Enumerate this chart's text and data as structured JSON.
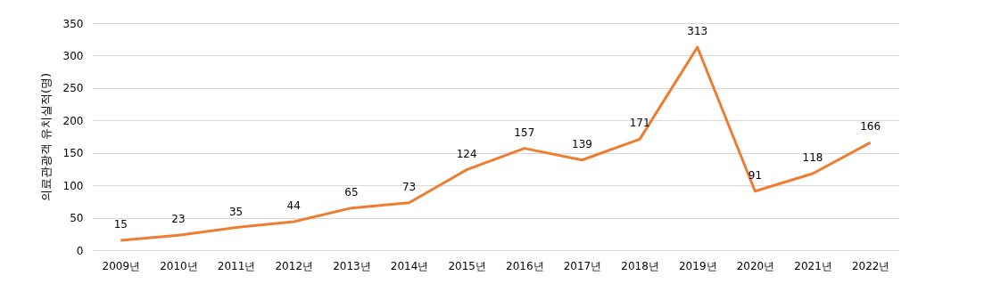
{
  "chart_data": {
    "type": "line",
    "ylabel": "의료관광객 유치실적(명)",
    "categories": [
      "2009년",
      "2010년",
      "2011년",
      "2012년",
      "2013년",
      "2014년",
      "2015년",
      "2016년",
      "2017년",
      "2018년",
      "2019년",
      "2020년",
      "2021년",
      "2022년"
    ],
    "series": [
      {
        "color": "#ed7d31",
        "values": [
          15,
          23,
          35,
          44,
          65,
          73,
          124,
          157,
          139,
          171,
          313,
          91,
          118,
          166
        ]
      }
    ],
    "ylim": [
      0,
      350
    ],
    "yticks": [
      0,
      50,
      100,
      150,
      200,
      250,
      300,
      350
    ],
    "grid": "y",
    "data_labels": true,
    "marker": "none",
    "line_style": "solid",
    "legend": false
  }
}
